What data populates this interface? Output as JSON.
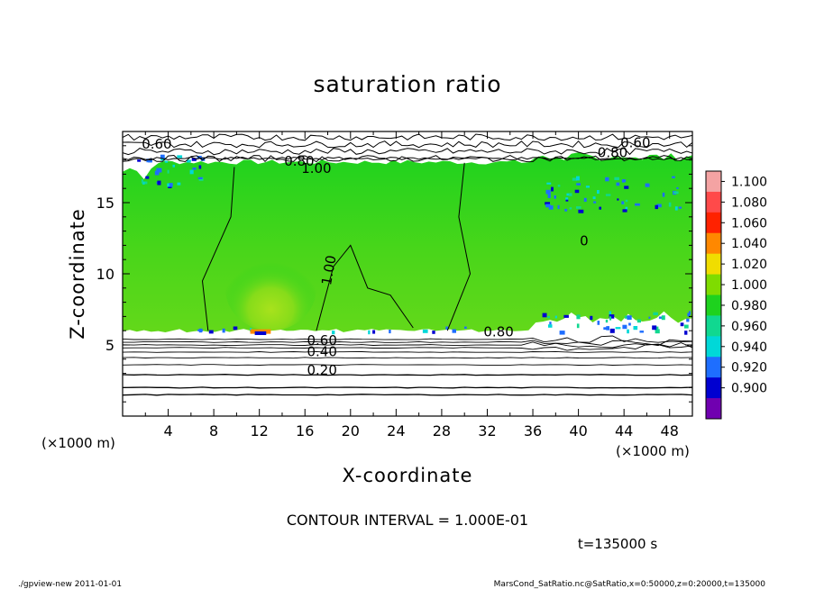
{
  "chart_data": {
    "type": "heatmap",
    "title": "saturation ratio",
    "xlabel": "X-coordinate",
    "ylabel": "Z-coordinate",
    "x_unit_left": "(×1000 m)",
    "x_unit_right": "(×1000 m)",
    "xlim": [
      0,
      50
    ],
    "ylim": [
      0,
      20
    ],
    "x_ticks": [
      4,
      8,
      12,
      16,
      20,
      24,
      28,
      32,
      36,
      40,
      44,
      48
    ],
    "y_ticks": [
      5,
      10,
      15
    ],
    "contour_interval_text": "CONTOUR INTERVAL = 1.000E-01",
    "time_text": "t=135000 s",
    "colorbar": {
      "levels": [
        "1.100",
        "1.080",
        "1.060",
        "1.040",
        "1.020",
        "1.000",
        "0.980",
        "0.960",
        "0.940",
        "0.920",
        "0.900"
      ],
      "colors": [
        "#f4a3a3",
        "#ff4a4a",
        "#ff2200",
        "#ff8800",
        "#f0dd00",
        "#7fdc00",
        "#1ed21e",
        "#10d890",
        "#00d8d8",
        "#1e6eff",
        "#0000d0",
        "#7000b0"
      ]
    },
    "fields": {
      "upper_clear_z": [
        18.0,
        20.0
      ],
      "saturated_band_z": [
        6.0,
        18.0
      ],
      "saturated_value": 1.0,
      "warm_core": {
        "x": [
          9,
          17
        ],
        "z": [
          6.0,
          12.0
        ],
        "value": 1.01
      },
      "lower_clear_z": [
        0.0,
        6.0
      ]
    },
    "contour_labels": [
      {
        "text": "0.60",
        "x": 3.0,
        "z": 18.8
      },
      {
        "text": "0.80",
        "x": 15.5,
        "z": 17.6
      },
      {
        "text": "1.00",
        "x": 17.0,
        "z": 17.1
      },
      {
        "text": "0.60",
        "x": 45.0,
        "z": 18.9
      },
      {
        "text": "0.80",
        "x": 43.0,
        "z": 18.2
      },
      {
        "text": "1.00",
        "x": 18.5,
        "z": 10.2
      },
      {
        "text": "0",
        "x": 40.5,
        "z": 12.0
      },
      {
        "text": "0.80",
        "x": 33.0,
        "z": 5.6
      },
      {
        "text": "0.60",
        "x": 17.5,
        "z": 5.0
      },
      {
        "text": "0.40",
        "x": 17.5,
        "z": 4.2
      },
      {
        "text": "0.20",
        "x": 17.5,
        "z": 2.9
      }
    ],
    "lower_contour_z": [
      5.4,
      5.2,
      5.0,
      4.8,
      4.5,
      4.1,
      3.6,
      2.9,
      2.0,
      1.5
    ],
    "inner_contours": [
      {
        "points": [
          [
            7.5,
            6.0
          ],
          [
            7.0,
            9.5
          ],
          [
            9.5,
            14.0
          ],
          [
            9.8,
            17.5
          ]
        ]
      },
      {
        "points": [
          [
            17.0,
            6.0
          ],
          [
            18.5,
            10.5
          ],
          [
            20.0,
            12.0
          ],
          [
            21.5,
            9.0
          ],
          [
            23.5,
            8.5
          ],
          [
            25.5,
            6.2
          ]
        ]
      },
      {
        "points": [
          [
            28.5,
            6.0
          ],
          [
            30.5,
            10.0
          ],
          [
            29.5,
            14.0
          ],
          [
            30.0,
            17.8
          ]
        ]
      }
    ]
  },
  "footer": {
    "left": "./gpview-new  2011-01-01",
    "right": "MarsCond_SatRatio.nc@SatRatio,x=0:50000,z=0:20000,t=135000"
  }
}
